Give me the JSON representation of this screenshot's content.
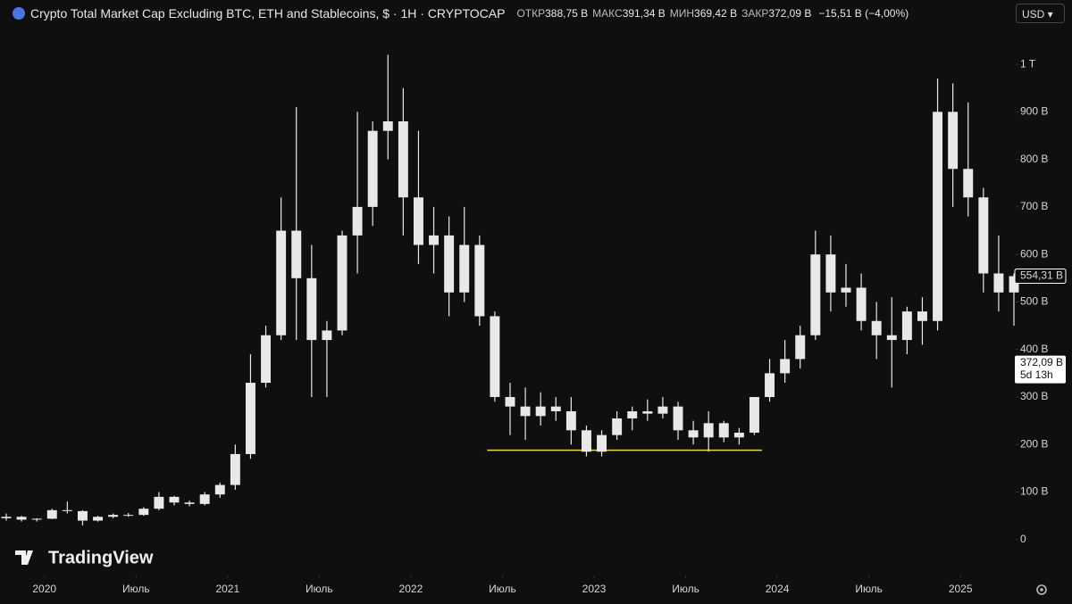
{
  "chart_data": {
    "type": "candlestick",
    "title": "Crypto Total Market Cap Excluding BTC, ETH and Stablecoins, $ · 1Н · CRYPTOCAP",
    "ohlc": [
      {
        "label": "ОТКР",
        "value": "388,75 B"
      },
      {
        "label": "МАКС",
        "value": "391,34 B"
      },
      {
        "label": "МИН",
        "value": "369,42 B"
      },
      {
        "label": "ЗАКР",
        "value": "372,09 B"
      }
    ],
    "change": "−15,51 B (−4,00%)",
    "currency": "USD",
    "brand": "TradingView",
    "color": "#e8e8e8",
    "x": [
      "2019-10",
      "2019-11",
      "2019-12",
      "2020-01",
      "2020-02",
      "2020-03",
      "2020-04",
      "2020-05",
      "2020-06",
      "2020-07",
      "2020-08",
      "2020-09",
      "2020-10",
      "2020-11",
      "2020-12",
      "2021-01",
      "2021-02",
      "2021-03",
      "2021-04",
      "2021-05",
      "2021-06",
      "2021-07",
      "2021-08",
      "2021-09",
      "2021-10",
      "2021-11",
      "2021-12",
      "2022-01",
      "2022-02",
      "2022-03",
      "2022-04",
      "2022-05",
      "2022-06",
      "2022-07",
      "2022-08",
      "2022-09",
      "2022-10",
      "2022-11",
      "2022-12",
      "2023-01",
      "2023-02",
      "2023-03",
      "2023-04",
      "2023-05",
      "2023-06",
      "2023-07",
      "2023-08",
      "2023-09",
      "2023-10",
      "2023-11",
      "2023-12",
      "2024-01",
      "2024-02",
      "2024-03",
      "2024-04",
      "2024-05",
      "2024-06",
      "2024-07",
      "2024-08",
      "2024-09",
      "2024-10",
      "2024-11",
      "2024-12",
      "2025-01",
      "2025-02",
      "2025-03",
      "2025-04"
    ],
    "open": [
      45,
      48,
      42,
      44,
      62,
      60,
      40,
      48,
      52,
      52,
      65,
      90,
      78,
      75,
      95,
      115,
      180,
      330,
      430,
      650,
      550,
      420,
      440,
      640,
      700,
      860,
      880,
      720,
      620,
      640,
      520,
      620,
      470,
      300,
      280,
      260,
      280,
      270,
      230,
      185,
      220,
      255,
      270,
      265,
      280,
      230,
      215,
      245,
      215,
      225,
      300,
      350,
      380,
      430,
      600,
      520,
      530,
      460,
      430,
      420,
      480,
      460,
      900,
      780,
      720,
      560,
      520
    ],
    "high": [
      55,
      50,
      45,
      65,
      80,
      62,
      50,
      55,
      56,
      68,
      100,
      92,
      82,
      100,
      120,
      200,
      390,
      450,
      720,
      910,
      620,
      460,
      650,
      900,
      880,
      1020,
      950,
      860,
      700,
      680,
      700,
      640,
      480,
      330,
      320,
      310,
      300,
      300,
      240,
      230,
      270,
      280,
      295,
      300,
      290,
      250,
      270,
      250,
      235,
      300,
      380,
      420,
      450,
      650,
      640,
      580,
      560,
      500,
      510,
      490,
      510,
      970,
      960,
      920,
      740,
      640,
      560
    ],
    "low": [
      40,
      38,
      38,
      43,
      55,
      30,
      38,
      45,
      48,
      50,
      62,
      72,
      70,
      72,
      88,
      105,
      170,
      320,
      420,
      420,
      300,
      300,
      430,
      560,
      660,
      800,
      640,
      580,
      560,
      470,
      500,
      450,
      290,
      220,
      210,
      240,
      250,
      200,
      175,
      175,
      210,
      230,
      250,
      255,
      210,
      200,
      185,
      205,
      200,
      220,
      290,
      330,
      360,
      420,
      480,
      490,
      440,
      380,
      320,
      390,
      410,
      440,
      700,
      680,
      520,
      480,
      450
    ],
    "close": [
      48,
      42,
      44,
      62,
      60,
      40,
      48,
      52,
      52,
      65,
      90,
      78,
      75,
      95,
      115,
      180,
      330,
      430,
      650,
      550,
      420,
      440,
      640,
      700,
      860,
      880,
      720,
      620,
      640,
      520,
      620,
      470,
      300,
      280,
      260,
      280,
      270,
      230,
      185,
      220,
      255,
      270,
      265,
      280,
      230,
      215,
      245,
      215,
      225,
      300,
      350,
      380,
      430,
      600,
      520,
      530,
      460,
      430,
      420,
      480,
      460,
      900,
      780,
      720,
      560,
      520,
      554.31
    ],
    "xlim": [
      "2019-10",
      "2025-04"
    ],
    "xticks": [
      {
        "value": "2020-01",
        "label": "2020"
      },
      {
        "value": "2020-07",
        "label": "Июль"
      },
      {
        "value": "2021-01",
        "label": "2021"
      },
      {
        "value": "2021-07",
        "label": "Июль"
      },
      {
        "value": "2022-01",
        "label": "2022"
      },
      {
        "value": "2022-07",
        "label": "Июль"
      },
      {
        "value": "2023-01",
        "label": "2023"
      },
      {
        "value": "2023-07",
        "label": "Июль"
      },
      {
        "value": "2024-01",
        "label": "2024"
      },
      {
        "value": "2024-07",
        "label": "Июль"
      },
      {
        "value": "2025-01",
        "label": "2025"
      }
    ],
    "ylim": [
      -66,
      1079
    ],
    "yticks": [
      0,
      {
        "value": 100,
        "label": "100 B"
      },
      {
        "value": 200,
        "label": "200 B"
      },
      {
        "value": 300,
        "label": "300 B"
      },
      {
        "value": 400,
        "label": "400 B"
      },
      {
        "value": 500,
        "label": "500 B"
      },
      {
        "value": 600,
        "label": "600 B"
      },
      {
        "value": 700,
        "label": "700 B"
      },
      {
        "value": 800,
        "label": "800 B"
      },
      {
        "value": 900,
        "label": "900 B"
      },
      {
        "value": 1000,
        "label": "1 T"
      }
    ],
    "support_line": {
      "value": 188,
      "from": "2022-06",
      "to": "2023-12",
      "color": "#e6d84a"
    },
    "price_labels": [
      {
        "value": 554.31,
        "label": "554,31 B"
      },
      {
        "value": 372.09,
        "label": "372,09 B",
        "countdown": "5d 13h"
      }
    ]
  }
}
